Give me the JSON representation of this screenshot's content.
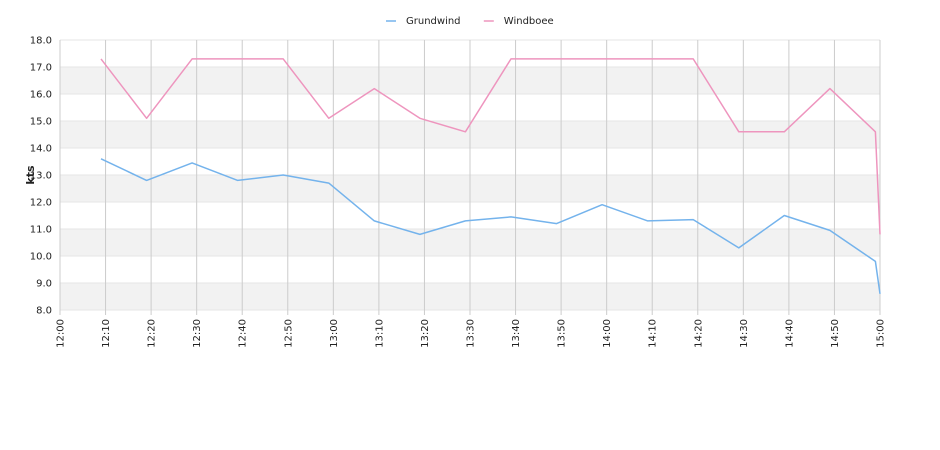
{
  "chart_data": {
    "type": "line",
    "title": "",
    "xlabel": "",
    "ylabel": "kts",
    "ylim": [
      8.0,
      18.0
    ],
    "y_ticks": [
      "8.0",
      "9.0",
      "10.0",
      "11.0",
      "12.0",
      "13.0",
      "14.0",
      "15.0",
      "16.0",
      "17.0",
      "18.0"
    ],
    "x_range": [
      "12:00",
      "15:00"
    ],
    "x_ticks": [
      "12:00",
      "12:10",
      "12:20",
      "12:30",
      "12:40",
      "12:50",
      "13:00",
      "13:10",
      "13:20",
      "13:30",
      "13:40",
      "13:50",
      "14:00",
      "14:10",
      "14:20",
      "14:30",
      "14:40",
      "14:50",
      "15:00"
    ],
    "grid": true,
    "alternate_bands": true,
    "legend_position": "top-center",
    "series": [
      {
        "name": "Grundwind",
        "color": "#74b3ec",
        "x": [
          "12:09",
          "12:19",
          "12:29",
          "12:39",
          "12:49",
          "12:59",
          "13:09",
          "13:19",
          "13:29",
          "13:39",
          "13:49",
          "13:59",
          "14:09",
          "14:19",
          "14:29",
          "14:39",
          "14:49",
          "14:59",
          "15:00"
        ],
        "values": [
          13.6,
          12.8,
          13.45,
          12.8,
          13.0,
          12.7,
          11.3,
          10.8,
          11.3,
          11.45,
          11.2,
          11.9,
          11.3,
          11.35,
          10.3,
          11.5,
          10.95,
          9.8,
          8.6
        ]
      },
      {
        "name": "Windboee",
        "color": "#ee95be",
        "x": [
          "12:09",
          "12:19",
          "12:29",
          "12:39",
          "12:49",
          "12:59",
          "13:09",
          "13:19",
          "13:29",
          "13:39",
          "13:49",
          "13:59",
          "14:09",
          "14:19",
          "14:29",
          "14:39",
          "14:49",
          "14:59",
          "15:00"
        ],
        "values": [
          17.3,
          15.1,
          17.3,
          17.3,
          17.3,
          15.1,
          16.2,
          15.1,
          14.6,
          17.3,
          17.3,
          17.3,
          17.3,
          17.3,
          14.6,
          14.6,
          16.2,
          14.6,
          10.8
        ]
      }
    ]
  }
}
